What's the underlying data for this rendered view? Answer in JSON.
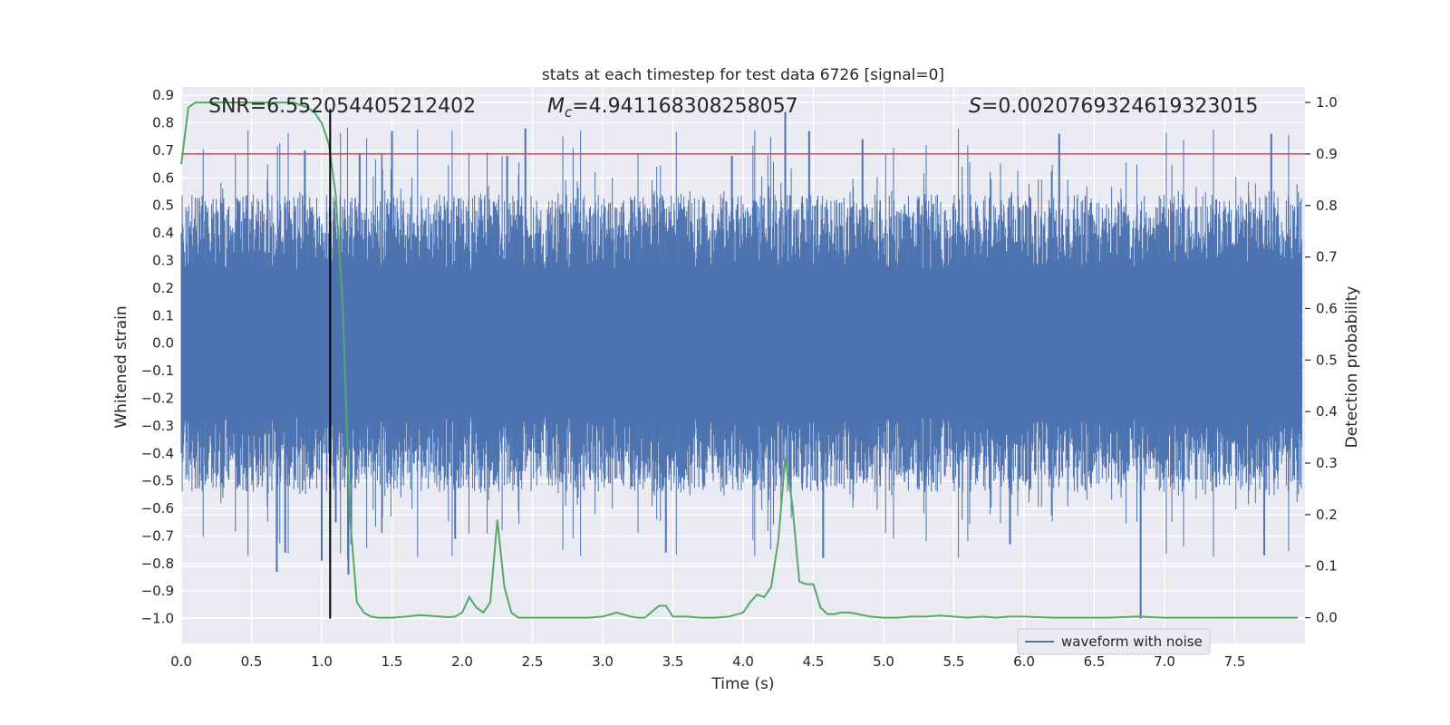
{
  "chart_data": {
    "type": "line",
    "title": "stats at each timestep for test data 6726 [signal=0]",
    "xlabel": "Time (s)",
    "ylabel": "Whitened strain",
    "y2label": "Detection probability",
    "xlim": [
      0.0,
      8.0
    ],
    "ylim": [
      -1.09,
      0.93
    ],
    "y2lim": [
      -0.05,
      1.03
    ],
    "x_ticks": [
      0.0,
      0.5,
      1.0,
      1.5,
      2.0,
      2.5,
      3.0,
      3.5,
      4.0,
      4.5,
      5.0,
      5.5,
      6.0,
      6.5,
      7.0,
      7.5
    ],
    "x_tick_labels": [
      "0.0",
      "0.5",
      "1.0",
      "1.5",
      "2.0",
      "2.5",
      "3.0",
      "3.5",
      "4.0",
      "4.5",
      "5.0",
      "5.5",
      "6.0",
      "6.5",
      "7.0",
      "7.5"
    ],
    "y_ticks": [
      0.9,
      0.8,
      0.7,
      0.6,
      0.5,
      0.4,
      0.3,
      0.2,
      0.1,
      0.0,
      -0.1,
      -0.2,
      -0.3,
      -0.4,
      -0.5,
      -0.6,
      -0.7,
      -0.8,
      -0.9,
      -1.0
    ],
    "y_tick_labels": [
      "0.9",
      "0.8",
      "0.7",
      "0.6",
      "0.5",
      "0.4",
      "0.3",
      "0.2",
      "0.1",
      "0.0",
      "−0.1",
      "−0.2",
      "−0.3",
      "−0.4",
      "−0.5",
      "−0.6",
      "−0.7",
      "−0.8",
      "−0.9",
      "−1.0"
    ],
    "y2_ticks": [
      1.0,
      0.9,
      0.8,
      0.7,
      0.6,
      0.5,
      0.4,
      0.3,
      0.2,
      0.1,
      0.0
    ],
    "y2_tick_labels": [
      "1.0",
      "0.9",
      "0.8",
      "0.7",
      "0.6",
      "0.5",
      "0.4",
      "0.3",
      "0.2",
      "0.1",
      "0.0"
    ],
    "annotations": {
      "snr": "SNR=6.552054405212402",
      "mc_symbol": "M",
      "mc_sub": "c",
      "mc_value": "=4.941168308258057",
      "s_symbol": "S",
      "s_value": "=0.0020769324619323015"
    },
    "threshold": {
      "value": 0.9,
      "axis": "y2",
      "color": "#c44e52"
    },
    "marker_line": {
      "x": 1.06,
      "y_from": -1.0,
      "y_to": 0.85,
      "color": "#000000"
    },
    "legend": {
      "label": "waveform with noise",
      "placement": "lower-right"
    },
    "colors": {
      "waveform": "#4c72b0",
      "probability": "#55a868",
      "plot_bg": "#eaeaf2",
      "grid": "#ffffff"
    },
    "series": [
      {
        "name": "waveform with noise",
        "axis": "y",
        "description": "noise-dominated whitened strain; envelope approx ±0.3 dense, spikes up to 0.84 and down to -1.0",
        "spikes": [
          {
            "x": 0.02,
            "y": 0.33
          },
          {
            "x": 0.68,
            "y": -0.83
          },
          {
            "x": 0.74,
            "y": -0.76
          },
          {
            "x": 0.88,
            "y": 0.7
          },
          {
            "x": 1.0,
            "y": -0.79
          },
          {
            "x": 1.1,
            "y": -0.65
          },
          {
            "x": 1.19,
            "y": -0.84
          },
          {
            "x": 1.21,
            "y": -0.73
          },
          {
            "x": 1.27,
            "y": 0.69
          },
          {
            "x": 1.5,
            "y": 0.77
          },
          {
            "x": 1.95,
            "y": -0.71
          },
          {
            "x": 2.32,
            "y": 0.68
          },
          {
            "x": 2.45,
            "y": 0.78
          },
          {
            "x": 3.45,
            "y": -0.76
          },
          {
            "x": 3.92,
            "y": 0.68
          },
          {
            "x": 4.3,
            "y": 0.84
          },
          {
            "x": 4.47,
            "y": 0.77
          },
          {
            "x": 4.57,
            "y": -0.78
          },
          {
            "x": 4.85,
            "y": 0.74
          },
          {
            "x": 5.9,
            "y": -0.73
          },
          {
            "x": 6.25,
            "y": 0.76
          },
          {
            "x": 6.83,
            "y": -1.0
          },
          {
            "x": 7.71,
            "y": -0.77
          },
          {
            "x": 7.76,
            "y": 0.76
          }
        ]
      },
      {
        "name": "Detection probability",
        "axis": "y2",
        "x": [
          0.0,
          0.05,
          0.1,
          0.2,
          0.3,
          0.4,
          0.5,
          0.6,
          0.7,
          0.8,
          0.9,
          0.95,
          1.0,
          1.05,
          1.1,
          1.15,
          1.2,
          1.25,
          1.3,
          1.35,
          1.4,
          1.5,
          1.6,
          1.7,
          1.75,
          1.8,
          1.9,
          1.95,
          2.0,
          2.05,
          2.1,
          2.15,
          2.2,
          2.25,
          2.3,
          2.35,
          2.4,
          2.45,
          2.5,
          2.6,
          2.7,
          2.8,
          2.9,
          3.0,
          3.1,
          3.2,
          3.25,
          3.3,
          3.4,
          3.45,
          3.5,
          3.6,
          3.7,
          3.8,
          3.9,
          4.0,
          4.05,
          4.1,
          4.15,
          4.2,
          4.25,
          4.3,
          4.35,
          4.4,
          4.45,
          4.5,
          4.55,
          4.6,
          4.65,
          4.7,
          4.75,
          4.8,
          4.85,
          4.9,
          5.0,
          5.1,
          5.2,
          5.3,
          5.4,
          5.5,
          5.6,
          5.7,
          5.8,
          5.9,
          6.0,
          6.2,
          6.4,
          6.6,
          6.8,
          7.0,
          7.2,
          7.4,
          7.6,
          7.8,
          7.95
        ],
        "values": [
          0.88,
          0.99,
          1.0,
          1.0,
          1.0,
          1.0,
          1.0,
          1.0,
          1.0,
          1.0,
          0.99,
          0.98,
          0.96,
          0.92,
          0.82,
          0.6,
          0.2,
          0.03,
          0.01,
          0.002,
          0.0,
          0.0,
          0.002,
          0.005,
          0.004,
          0.003,
          0.001,
          0.002,
          0.01,
          0.04,
          0.02,
          0.01,
          0.03,
          0.19,
          0.06,
          0.01,
          0.0,
          0.0,
          0.0,
          0.0,
          0.0,
          0.0,
          0.0,
          0.002,
          0.01,
          0.002,
          0.0,
          0.0,
          0.023,
          0.023,
          0.002,
          0.002,
          0.0,
          0.0,
          0.002,
          0.01,
          0.03,
          0.045,
          0.04,
          0.06,
          0.15,
          0.31,
          0.22,
          0.07,
          0.065,
          0.065,
          0.02,
          0.007,
          0.007,
          0.01,
          0.01,
          0.008,
          0.005,
          0.002,
          0.0,
          0.0,
          0.002,
          0.002,
          0.004,
          0.002,
          0.0,
          0.002,
          0.0,
          0.002,
          0.002,
          0.0,
          0.0,
          0.0,
          0.002,
          0.0,
          0.0,
          0.0,
          0.0,
          0.0,
          0.0
        ]
      }
    ]
  }
}
